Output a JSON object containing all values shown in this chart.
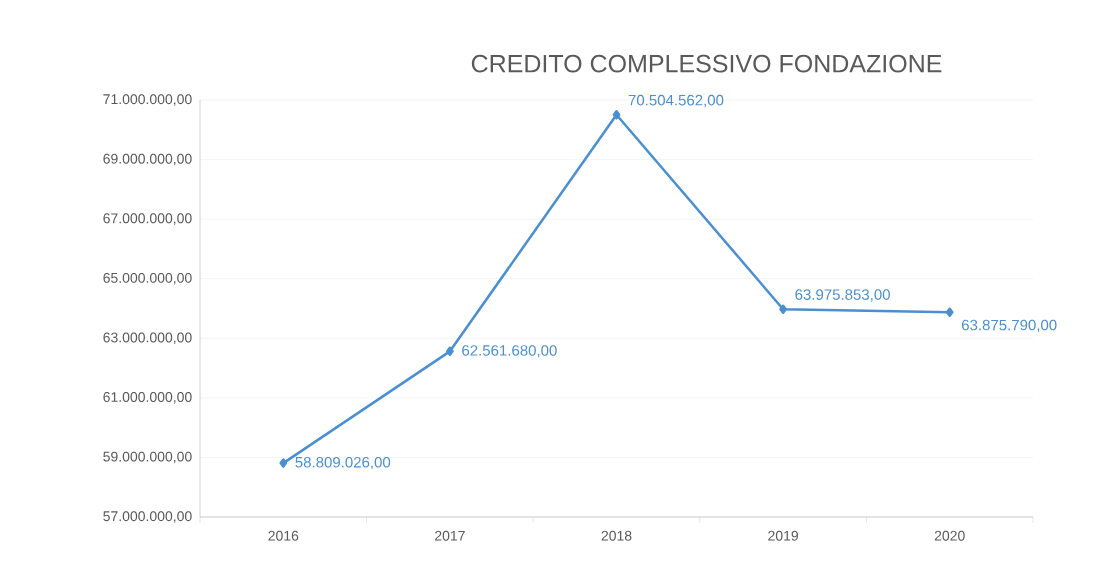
{
  "chart_data": {
    "type": "line",
    "title": "CREDITO COMPLESSIVO FONDAZIONE",
    "categories": [
      "2016",
      "2017",
      "2018",
      "2019",
      "2020"
    ],
    "series": [
      {
        "color": "#4a8fd1",
        "values": [
          58809026,
          62561680,
          70504562,
          63975853,
          63875790
        ],
        "value_labels": [
          "58.809.026,00",
          "62.561.680,00",
          "70.504.562,00",
          "63.975.853,00",
          "63.875.790,00"
        ]
      }
    ],
    "ylim": [
      57000000,
      71000000
    ],
    "yticks": [
      {
        "value": 57000000,
        "label": "57.000.000,00"
      },
      {
        "value": 59000000,
        "label": "59.000.000,00"
      },
      {
        "value": 61000000,
        "label": "61.000.000,00"
      },
      {
        "value": 63000000,
        "label": "63.000.000,00"
      },
      {
        "value": 65000000,
        "label": "65.000.000,00"
      },
      {
        "value": 67000000,
        "label": "67.000.000,00"
      },
      {
        "value": 69000000,
        "label": "69.000.000,00"
      },
      {
        "value": 71000000,
        "label": "71.000.000,00"
      }
    ],
    "grid": "y",
    "marker": "diamond",
    "line_style": "solid"
  }
}
